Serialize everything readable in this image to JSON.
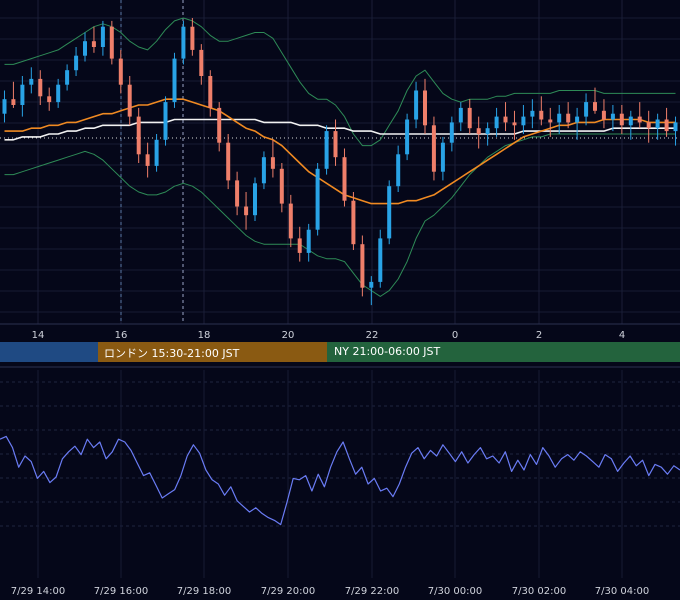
{
  "chart_data": [
    {
      "type": "candlestick",
      "title": "",
      "x_ticks": [
        "14",
        "16",
        "18",
        "20",
        "22",
        "0",
        "2",
        "4"
      ],
      "grid": true,
      "overlays": [
        "moving-average-orange",
        "moving-average-white",
        "bollinger-bands-green",
        "reference-dotted-line"
      ],
      "y_range": [
        0,
        100
      ],
      "candles_series": [
        [
          67,
          75,
          64,
          72
        ],
        [
          72,
          78,
          69,
          70
        ],
        [
          70,
          80,
          66,
          77
        ],
        [
          77,
          83,
          74,
          79
        ],
        [
          79,
          82,
          70,
          73
        ],
        [
          73,
          76,
          68,
          71
        ],
        [
          71,
          79,
          69,
          77
        ],
        [
          77,
          84,
          75,
          82
        ],
        [
          82,
          90,
          80,
          87
        ],
        [
          87,
          95,
          85,
          92
        ],
        [
          92,
          97,
          88,
          90
        ],
        [
          90,
          99,
          87,
          97
        ],
        [
          97,
          99,
          84,
          86
        ],
        [
          86,
          89,
          74,
          77
        ],
        [
          77,
          80,
          63,
          66
        ],
        [
          66,
          69,
          50,
          53
        ],
        [
          53,
          57,
          45,
          49
        ],
        [
          49,
          60,
          47,
          58
        ],
        [
          58,
          73,
          56,
          71
        ],
        [
          71,
          88,
          69,
          86
        ],
        [
          86,
          99,
          84,
          97
        ],
        [
          97,
          100,
          87,
          89
        ],
        [
          89,
          91,
          77,
          80
        ],
        [
          80,
          82,
          66,
          69
        ],
        [
          69,
          71,
          54,
          57
        ],
        [
          57,
          60,
          41,
          44
        ],
        [
          44,
          47,
          32,
          35
        ],
        [
          35,
          40,
          27,
          32
        ],
        [
          32,
          45,
          30,
          43
        ],
        [
          43,
          54,
          41,
          52
        ],
        [
          52,
          58,
          45,
          48
        ],
        [
          48,
          50,
          33,
          36
        ],
        [
          36,
          39,
          21,
          24
        ],
        [
          24,
          28,
          16,
          19
        ],
        [
          19,
          29,
          16,
          27
        ],
        [
          27,
          50,
          25,
          48
        ],
        [
          48,
          63,
          46,
          61
        ],
        [
          61,
          65,
          49,
          52
        ],
        [
          52,
          55,
          35,
          37
        ],
        [
          37,
          40,
          20,
          22
        ],
        [
          22,
          25,
          4,
          7
        ],
        [
          7,
          11,
          1,
          9
        ],
        [
          9,
          27,
          7,
          24
        ],
        [
          24,
          44,
          22,
          42
        ],
        [
          42,
          56,
          40,
          53
        ],
        [
          53,
          67,
          51,
          65
        ],
        [
          65,
          78,
          62,
          75
        ],
        [
          75,
          79,
          60,
          63
        ],
        [
          63,
          66,
          44,
          47
        ],
        [
          47,
          59,
          44,
          57
        ],
        [
          57,
          66,
          54,
          64
        ],
        [
          64,
          71,
          61,
          69
        ],
        [
          69,
          72,
          60,
          62
        ],
        [
          62,
          66,
          55,
          60
        ],
        [
          60,
          64,
          56,
          62
        ],
        [
          62,
          69,
          59,
          66
        ],
        [
          66,
          71,
          61,
          64
        ],
        [
          64,
          68,
          58,
          63
        ],
        [
          63,
          70,
          60,
          66
        ],
        [
          66,
          72,
          62,
          68
        ],
        [
          68,
          73,
          63,
          65
        ],
        [
          65,
          69,
          59,
          64
        ],
        [
          64,
          70,
          60,
          67
        ],
        [
          67,
          71,
          62,
          64
        ],
        [
          64,
          69,
          58,
          66
        ],
        [
          66,
          74,
          63,
          71
        ],
        [
          71,
          76,
          67,
          68
        ],
        [
          68,
          72,
          62,
          65
        ],
        [
          65,
          70,
          61,
          67
        ],
        [
          67,
          70,
          60,
          63
        ],
        [
          63,
          68,
          58,
          66
        ],
        [
          66,
          71,
          62,
          64
        ],
        [
          64,
          68,
          57,
          62
        ],
        [
          62,
          67,
          58,
          65
        ],
        [
          65,
          69,
          59,
          61
        ],
        [
          61,
          66,
          56,
          64
        ]
      ],
      "ma_orange": [
        61,
        61,
        61,
        62,
        62,
        63,
        63,
        64,
        64,
        65,
        66,
        67,
        67,
        68,
        69,
        70,
        70,
        71,
        72,
        72,
        72,
        71,
        70,
        69,
        68,
        66,
        64,
        62,
        61,
        59,
        58,
        56,
        53,
        50,
        47,
        45,
        43,
        41,
        39,
        38,
        37,
        36,
        36,
        36,
        36,
        37,
        37,
        38,
        39,
        41,
        43,
        45,
        47,
        49,
        51,
        53,
        55,
        57,
        59,
        60,
        61,
        62,
        63,
        63,
        64,
        64,
        64,
        65,
        65,
        65,
        65,
        65,
        64,
        64,
        64,
        64
      ],
      "ma_white": [
        58,
        58,
        59,
        59,
        59,
        60,
        60,
        61,
        61,
        62,
        62,
        63,
        63,
        63,
        63,
        64,
        64,
        64,
        64,
        65,
        65,
        65,
        65,
        65,
        65,
        65,
        65,
        65,
        65,
        64,
        64,
        64,
        64,
        63,
        63,
        63,
        62,
        62,
        62,
        61,
        61,
        61,
        60,
        60,
        60,
        60,
        60,
        60,
        60,
        60,
        60,
        60,
        60,
        60,
        60,
        60,
        60,
        60,
        61,
        61,
        61,
        61,
        61,
        61,
        61,
        61,
        61,
        61,
        62,
        62,
        62,
        62,
        62,
        62,
        62,
        62
      ],
      "bb_upper": [
        84,
        84,
        85,
        86,
        87,
        88,
        89,
        91,
        93,
        95,
        97,
        98,
        97,
        95,
        92,
        90,
        89,
        92,
        96,
        99,
        100,
        99,
        97,
        94,
        92,
        92,
        93,
        94,
        95,
        95,
        93,
        88,
        83,
        78,
        74,
        72,
        72,
        70,
        66,
        60,
        56,
        56,
        58,
        63,
        68,
        75,
        80,
        82,
        78,
        74,
        72,
        71,
        72,
        72,
        72,
        73,
        73,
        74,
        74,
        74,
        74,
        74,
        75,
        75,
        75,
        75,
        75,
        74,
        74,
        74,
        74,
        74,
        74,
        74,
        74,
        74
      ],
      "bb_lower": [
        46,
        46,
        47,
        48,
        49,
        50,
        51,
        52,
        53,
        54,
        53,
        51,
        48,
        45,
        42,
        40,
        39,
        39,
        40,
        42,
        43,
        42,
        40,
        37,
        34,
        31,
        28,
        25,
        23,
        22,
        22,
        22,
        22,
        22,
        20,
        18,
        17,
        17,
        16,
        12,
        8,
        6,
        4,
        6,
        10,
        16,
        24,
        30,
        32,
        35,
        38,
        42,
        46,
        49,
        52,
        54,
        56,
        57,
        58,
        59,
        59,
        60,
        60,
        60,
        60,
        60,
        60,
        60,
        60,
        60,
        60,
        60,
        60,
        60,
        60,
        60
      ],
      "reference_level": 60
    },
    {
      "type": "band",
      "sessions": [
        {
          "label": "",
          "color": "#1f4a83"
        },
        {
          "label": "ロンドン 15:30-21:00 JST",
          "color": "#8a5a12"
        },
        {
          "label": "NY 21:00-06:00 JST",
          "color": "#23633d"
        }
      ]
    },
    {
      "type": "line",
      "x_ticks": [
        "7/29 14:00",
        "7/29 16:00",
        "7/29 18:00",
        "7/29 20:00",
        "7/29 22:00",
        "7/30 00:00",
        "7/30 02:00",
        "7/30 04:00"
      ],
      "grid": true,
      "color": "#6a7cf5",
      "y_range": [
        0,
        100
      ],
      "values": [
        72,
        74,
        66,
        52,
        60,
        56,
        44,
        49,
        41,
        45,
        58,
        63,
        67,
        61,
        72,
        66,
        70,
        58,
        63,
        72,
        70,
        64,
        55,
        46,
        48,
        39,
        30,
        33,
        36,
        46,
        60,
        68,
        62,
        50,
        43,
        40,
        32,
        38,
        28,
        24,
        20,
        23,
        19,
        16,
        14,
        11,
        27,
        44,
        43,
        46,
        35,
        47,
        38,
        52,
        63,
        70,
        58,
        47,
        52,
        40,
        44,
        35,
        37,
        31,
        40,
        52,
        62,
        66,
        58,
        64,
        60,
        68,
        62,
        56,
        63,
        55,
        61,
        66,
        58,
        60,
        55,
        63,
        49,
        57,
        50,
        61,
        54,
        66,
        60,
        52,
        58,
        61,
        57,
        63,
        60,
        56,
        52,
        61,
        58,
        49,
        55,
        60,
        53,
        57,
        46,
        54,
        52,
        47,
        53,
        50
      ]
    }
  ]
}
